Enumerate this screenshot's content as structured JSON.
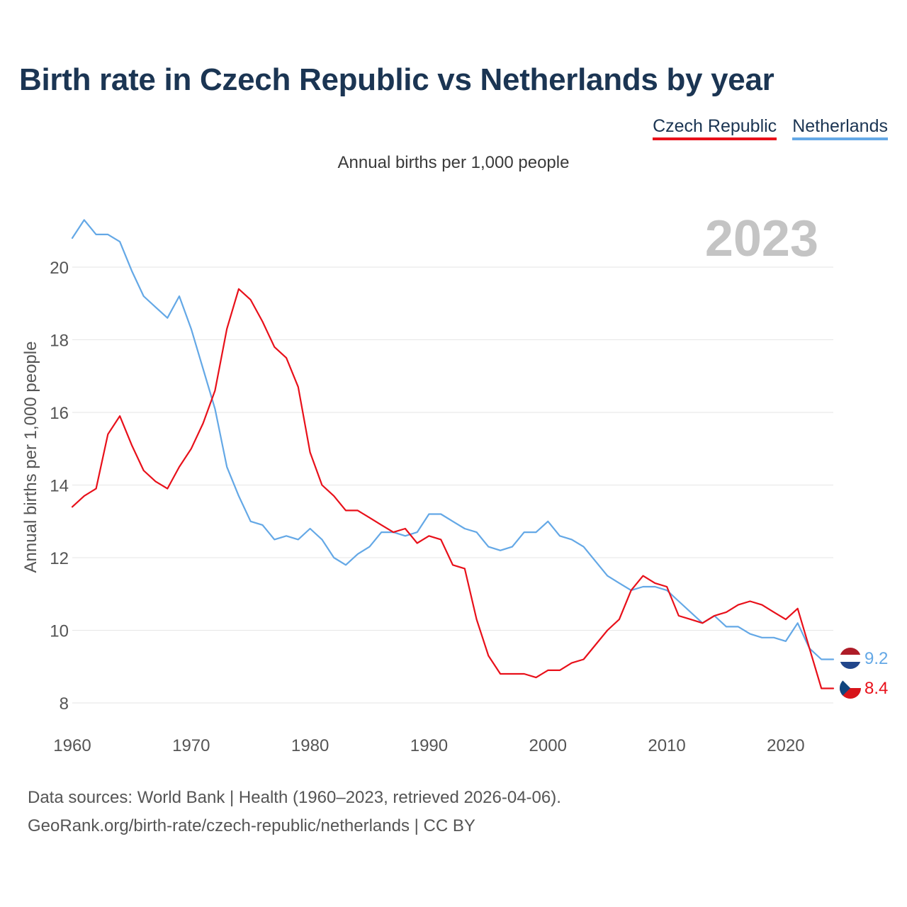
{
  "header": {
    "title": "Birth rate in Czech Republic vs Netherlands by year",
    "subtitle": "Annual births per 1,000 people"
  },
  "colors": {
    "czech": "#e8101a",
    "netherlands": "#64a8e6",
    "grid": "#e6e6e6",
    "year_label": "#c4c4c4"
  },
  "chart_data": {
    "type": "line",
    "title": "Birth rate in Czech Republic vs Netherlands by year",
    "subtitle": "Annual births per 1,000 people",
    "ylabel": "Annual births per 1,000 people",
    "xlabel": "",
    "xlim": [
      1960,
      2024
    ],
    "ylim": [
      7.5,
      22.0
    ],
    "x_ticks": [
      1960,
      1970,
      1980,
      1990,
      2000,
      2010,
      2020
    ],
    "y_ticks": [
      8,
      10,
      12,
      14,
      16,
      18,
      20
    ],
    "year_label": "2023",
    "legend_position": "top-right",
    "x": [
      1960,
      1961,
      1962,
      1963,
      1964,
      1965,
      1966,
      1967,
      1968,
      1969,
      1970,
      1971,
      1972,
      1973,
      1974,
      1975,
      1976,
      1977,
      1978,
      1979,
      1980,
      1981,
      1982,
      1983,
      1984,
      1985,
      1986,
      1987,
      1988,
      1989,
      1990,
      1991,
      1992,
      1993,
      1994,
      1995,
      1996,
      1997,
      1998,
      1999,
      2000,
      2001,
      2002,
      2003,
      2004,
      2005,
      2006,
      2007,
      2008,
      2009,
      2010,
      2011,
      2012,
      2013,
      2014,
      2015,
      2016,
      2017,
      2018,
      2019,
      2020,
      2021,
      2022,
      2023
    ],
    "series": [
      {
        "name": "Czech Republic",
        "key": "czech",
        "end_label": "8.4",
        "values": [
          13.4,
          13.7,
          13.9,
          15.4,
          15.9,
          15.1,
          14.4,
          14.1,
          13.9,
          14.5,
          15.0,
          15.7,
          16.6,
          18.3,
          19.4,
          19.1,
          18.5,
          17.8,
          17.5,
          16.7,
          14.9,
          14.0,
          13.7,
          13.3,
          13.3,
          13.1,
          12.9,
          12.7,
          12.8,
          12.4,
          12.6,
          12.5,
          11.8,
          11.7,
          10.3,
          9.3,
          8.8,
          8.8,
          8.8,
          8.7,
          8.9,
          8.9,
          9.1,
          9.2,
          9.6,
          10.0,
          10.3,
          11.1,
          11.5,
          11.3,
          11.2,
          10.4,
          10.3,
          10.2,
          10.4,
          10.5,
          10.7,
          10.8,
          10.7,
          10.5,
          10.3,
          10.6,
          9.5,
          8.4
        ]
      },
      {
        "name": "Netherlands",
        "key": "netherlands",
        "end_label": "9.2",
        "values": [
          20.8,
          21.3,
          20.9,
          20.9,
          20.7,
          19.9,
          19.2,
          18.9,
          18.6,
          19.2,
          18.3,
          17.2,
          16.1,
          14.5,
          13.7,
          13.0,
          12.9,
          12.5,
          12.6,
          12.5,
          12.8,
          12.5,
          12.0,
          11.8,
          12.1,
          12.3,
          12.7,
          12.7,
          12.6,
          12.7,
          13.2,
          13.2,
          13.0,
          12.8,
          12.7,
          12.3,
          12.2,
          12.3,
          12.7,
          12.7,
          13.0,
          12.6,
          12.5,
          12.3,
          11.9,
          11.5,
          11.3,
          11.1,
          11.2,
          11.2,
          11.1,
          10.8,
          10.5,
          10.2,
          10.4,
          10.1,
          10.1,
          9.9,
          9.8,
          9.8,
          9.7,
          10.2,
          9.5,
          9.2
        ]
      }
    ]
  },
  "footer": {
    "source_line1": "Data sources: World Bank | Health (1960–2023, retrieved 2026-04-06).",
    "source_line2": "GeoRank.org/birth-rate/czech-republic/netherlands | CC BY"
  }
}
